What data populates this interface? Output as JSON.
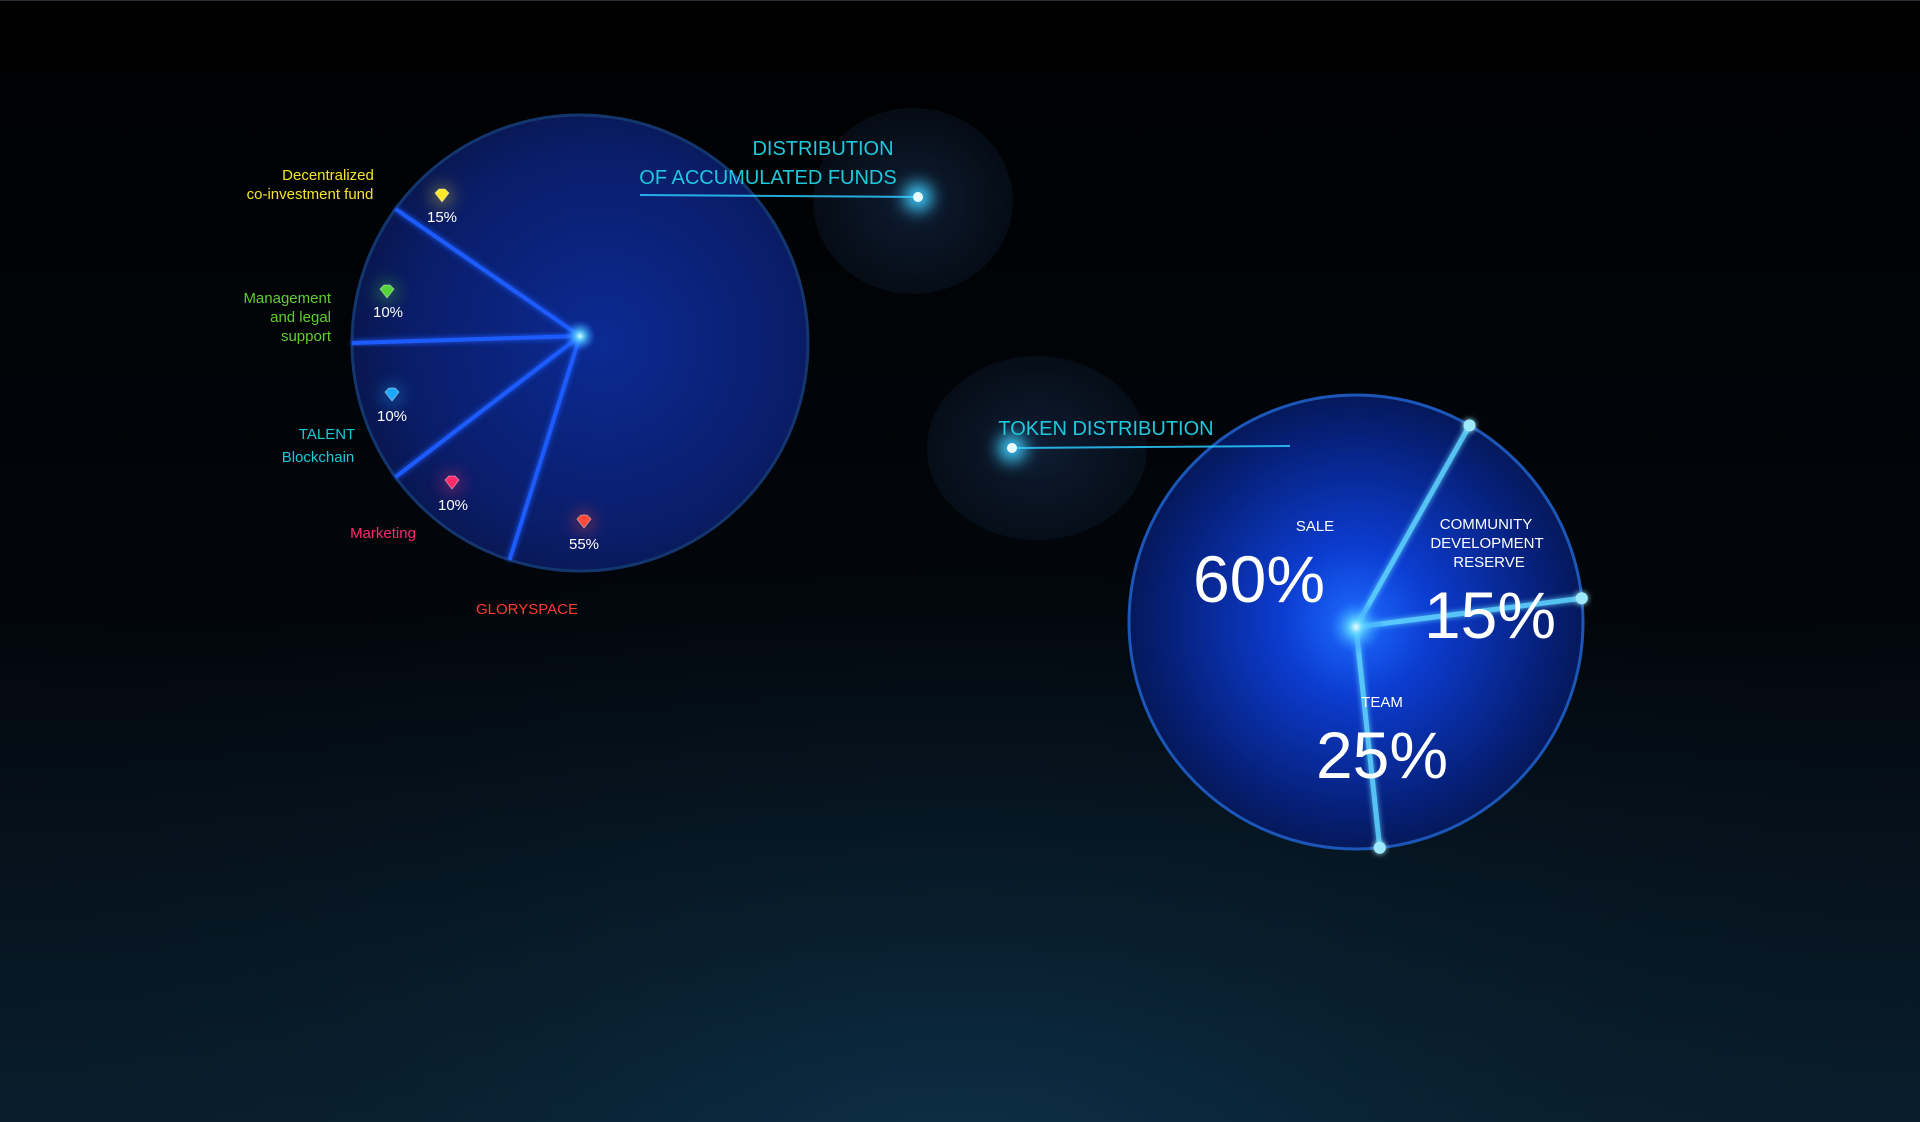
{
  "colors": {
    "background_top": "#000000",
    "background_bottom": "#0a2233",
    "pie_fill": "#0a1f6e",
    "pie_edge": "#123d8a",
    "slice_line": "#1f5cff",
    "glow": "#3fd0ff",
    "title_cyan": "#1ec8dd"
  },
  "chart_data": [
    {
      "type": "pie",
      "title_line1": "DISTRIBUTION",
      "title_line2": "OF ACCUMULATED FUNDS",
      "slices": [
        {
          "label": "GLORYSPACE",
          "value": 55,
          "value_text": "55%",
          "color": "#ff3b30",
          "label_color": "#ff3b30",
          "gem_color": "#ff4a3a"
        },
        {
          "label": "Marketing",
          "value": 10,
          "value_text": "10%",
          "color": "#ff2a6a",
          "label_color": "#ff2a6a",
          "gem_color": "#ff2a6a"
        },
        {
          "label_line1": "TALENT",
          "label_line2": "Blockchain",
          "value": 10,
          "value_text": "10%",
          "color": "#18c9d4",
          "label_color": "#18c9d4",
          "gem_color": "#1ea7ff"
        },
        {
          "label_line1": "Management",
          "label_line2": "and legal",
          "label_line3": "support",
          "value": 10,
          "value_text": "10%",
          "color": "#5fcf2b",
          "label_color": "#5fcf2b",
          "gem_color": "#55d437"
        },
        {
          "label_line1": "Decentralized",
          "label_line2": "co-investment fund",
          "value": 15,
          "value_text": "15%",
          "color": "#f5e52a",
          "label_color": "#f5e52a",
          "gem_color": "#ffe928"
        }
      ]
    },
    {
      "type": "pie",
      "title": "TOKEN DISTRIBUTION",
      "slices": [
        {
          "label": "SALE",
          "value": 60,
          "value_text": "60%"
        },
        {
          "label_line1": "COMMUNITY",
          "label_line2": "DEVELOPMENT",
          "label_line3": "RESERVE",
          "value": 15,
          "value_text": "15%"
        },
        {
          "label": "TEAM",
          "value": 25,
          "value_text": "25%"
        }
      ]
    }
  ]
}
